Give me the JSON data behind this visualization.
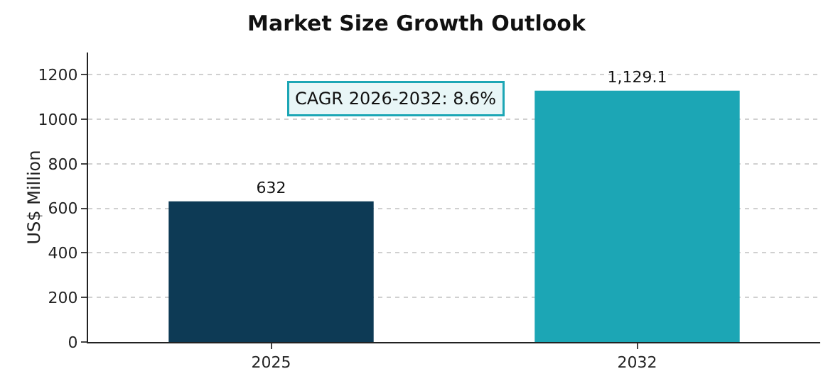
{
  "chart_data": {
    "type": "bar",
    "title": "Market Size Growth Outlook",
    "ylabel": "US$ Million",
    "categories": [
      "2025",
      "2032"
    ],
    "values": [
      632,
      1129.1
    ],
    "colors": [
      "#0d3a55",
      "#1ca6b5"
    ],
    "value_labels": [
      "632",
      "1,129.1"
    ],
    "ylim": [
      0,
      1300
    ],
    "yticks": [
      0,
      200,
      400,
      600,
      800,
      1000,
      1200
    ],
    "grid": "y",
    "annotations": [
      "CAGR 2026-2032: 8.6%"
    ]
  }
}
